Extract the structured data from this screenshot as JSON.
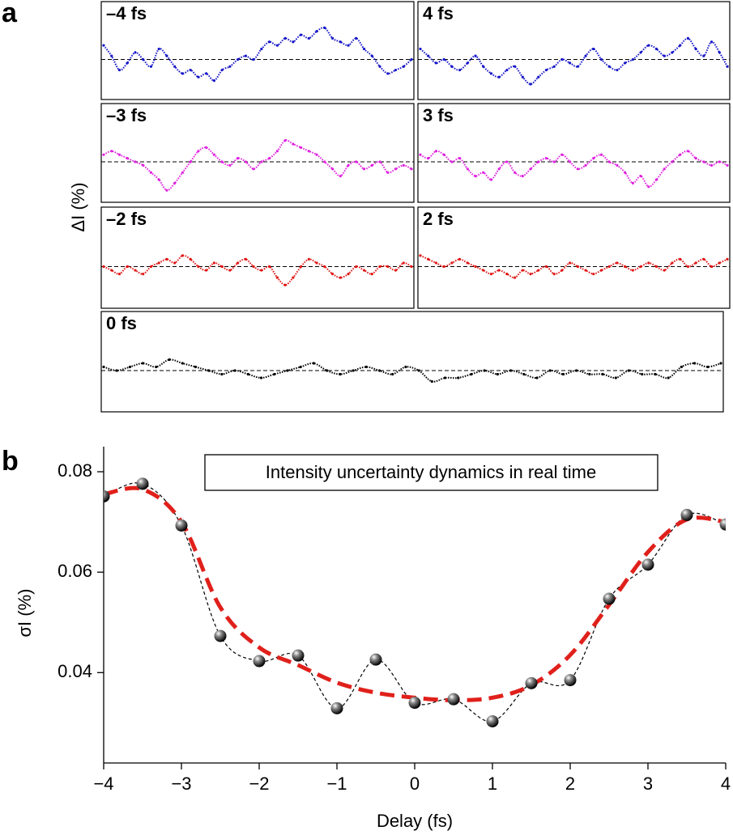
{
  "figure": {
    "panel_a_label": "a",
    "panel_a_ylabel": "ΔI (%)",
    "panel_b_label": "b"
  },
  "chart_data": [
    {
      "type": "trace",
      "title": "–4 fs",
      "color": "#1515c8",
      "ylim": [
        -1,
        1
      ],
      "zero_line": true,
      "values": [
        0.4,
        0.1,
        -0.3,
        -0.1,
        0.2,
        0.0,
        -0.2,
        0.3,
        0.1,
        -0.2,
        -0.4,
        -0.3,
        -0.5,
        -0.4,
        -0.6,
        -0.3,
        -0.2,
        0.0,
        0.1,
        0.0,
        0.3,
        0.5,
        0.4,
        0.6,
        0.5,
        0.7,
        0.6,
        0.8,
        0.9,
        0.6,
        0.5,
        0.4,
        0.6,
        0.3,
        0.1,
        -0.2,
        -0.4,
        -0.3,
        -0.2,
        0.0
      ]
    },
    {
      "type": "trace",
      "title": "4 fs",
      "color": "#1515c8",
      "ylim": [
        -1,
        1
      ],
      "zero_line": true,
      "values": [
        0.3,
        0.1,
        -0.1,
        0.0,
        -0.2,
        -0.3,
        -0.1,
        0.1,
        -0.2,
        -0.4,
        -0.5,
        -0.3,
        -0.2,
        -0.5,
        -0.7,
        -0.5,
        -0.3,
        -0.2,
        0.0,
        -0.1,
        -0.2,
        0.1,
        0.3,
        0.0,
        -0.2,
        -0.3,
        -0.1,
        0.0,
        0.2,
        0.4,
        0.3,
        0.1,
        0.2,
        0.4,
        0.6,
        0.3,
        0.1,
        0.5,
        0.2,
        -0.2
      ]
    },
    {
      "type": "trace",
      "title": "–3 fs",
      "color": "#e020e0",
      "ylim": [
        -1,
        1
      ],
      "zero_line": true,
      "values": [
        0.2,
        0.3,
        0.2,
        0.1,
        0.0,
        -0.1,
        -0.3,
        -0.5,
        -0.8,
        -0.6,
        -0.3,
        0.0,
        0.3,
        0.4,
        0.2,
        0.0,
        -0.1,
        0.1,
        0.0,
        -0.2,
        0.0,
        0.1,
        0.3,
        0.6,
        0.5,
        0.4,
        0.3,
        0.2,
        0.0,
        -0.2,
        -0.4,
        -0.1,
        0.0,
        -0.2,
        -0.1,
        0.0,
        -0.3,
        -0.2,
        -0.1,
        -0.2
      ]
    },
    {
      "type": "trace",
      "title": "3 fs",
      "color": "#e020e0",
      "ylim": [
        -1,
        1
      ],
      "zero_line": true,
      "values": [
        0.2,
        0.1,
        0.3,
        0.2,
        0.0,
        0.1,
        -0.2,
        -0.4,
        -0.3,
        -0.5,
        -0.2,
        0.0,
        -0.3,
        -0.4,
        -0.2,
        0.0,
        0.1,
        0.0,
        0.2,
        0.0,
        -0.2,
        -0.1,
        0.1,
        0.2,
        0.0,
        -0.1,
        -0.3,
        -0.6,
        -0.4,
        -0.7,
        -0.5,
        -0.2,
        0.0,
        0.2,
        0.3,
        0.1,
        0.0,
        -0.1,
        0.0,
        -0.1
      ]
    },
    {
      "type": "trace",
      "title": "–2 fs",
      "color": "#e01515",
      "ylim": [
        -1,
        1
      ],
      "zero_line": true,
      "values": [
        0.0,
        -0.1,
        -0.2,
        0.0,
        -0.1,
        -0.2,
        0.0,
        0.1,
        0.2,
        0.1,
        0.3,
        0.2,
        0.0,
        -0.1,
        0.1,
        0.0,
        -0.1,
        0.1,
        0.2,
        0.0,
        -0.1,
        0.0,
        -0.3,
        -0.5,
        -0.3,
        0.0,
        0.2,
        0.1,
        0.0,
        -0.2,
        -0.3,
        -0.2,
        0.0,
        -0.1,
        -0.2,
        0.0,
        0.0,
        -0.1,
        0.1,
        0.0
      ]
    },
    {
      "type": "trace",
      "title": "2 fs",
      "color": "#e01515",
      "ylim": [
        -1,
        1
      ],
      "zero_line": true,
      "values": [
        0.3,
        0.2,
        0.1,
        0.0,
        0.1,
        0.2,
        0.1,
        0.0,
        -0.1,
        -0.2,
        -0.1,
        -0.2,
        -0.3,
        -0.1,
        -0.2,
        -0.1,
        0.0,
        -0.2,
        -0.1,
        0.1,
        0.0,
        -0.1,
        -0.2,
        -0.1,
        0.0,
        0.1,
        0.0,
        -0.1,
        0.0,
        0.1,
        0.0,
        -0.1,
        0.1,
        0.2,
        0.0,
        0.1,
        0.2,
        0.0,
        0.1,
        0.2
      ]
    },
    {
      "type": "trace",
      "title": "0 fs",
      "color": "#000000",
      "ylim": [
        -1,
        1
      ],
      "zero_line": true,
      "values": [
        0.1,
        0.0,
        0.1,
        0.2,
        0.1,
        0.3,
        0.2,
        0.1,
        0.0,
        -0.1,
        0.0,
        -0.1,
        -0.2,
        -0.1,
        0.0,
        0.1,
        0.2,
        0.0,
        -0.1,
        0.0,
        0.1,
        0.0,
        -0.1,
        0.1,
        0.0,
        -0.3,
        -0.2,
        -0.2,
        -0.1,
        0.0,
        -0.1,
        0.0,
        -0.1,
        -0.2,
        0.0,
        -0.1,
        0.0,
        -0.1,
        -0.1,
        -0.2,
        0.0,
        -0.1,
        -0.1,
        -0.2,
        0.1,
        0.2,
        0.1,
        0.2
      ]
    },
    {
      "type": "line",
      "annotation": "Intensity uncertainty dynamics in real time",
      "xlabel": "Delay (fs)",
      "ylabel": "σI (%)",
      "x": [
        -4,
        -3.5,
        -3,
        -2.5,
        -2,
        -1.5,
        -1,
        -0.5,
        0,
        0.5,
        1,
        1.5,
        2,
        2.5,
        3,
        3.5,
        4
      ],
      "xlim": [
        -4,
        4
      ],
      "xticks": [
        {
          "value": -4,
          "label": "−4"
        },
        {
          "value": -3,
          "label": "−3"
        },
        {
          "value": -2,
          "label": "−2"
        },
        {
          "value": -1,
          "label": "−1"
        },
        0,
        1,
        2,
        3,
        4
      ],
      "ylim": [
        0.022,
        0.085
      ],
      "yticks": [
        0.04,
        0.06,
        0.08
      ],
      "series": [
        {
          "color": "#000000",
          "style": "thin-dashed",
          "markers": true,
          "values": [
            0.0751,
            0.0776,
            0.0693,
            0.0473,
            0.0423,
            0.0434,
            0.0329,
            0.0426,
            0.034,
            0.0347,
            0.0303,
            0.0379,
            0.0385,
            0.0547,
            0.0615,
            0.0714,
            0.0695
          ]
        },
        {
          "color": "#e0201b",
          "style": "thick-dashed",
          "markers": false,
          "values": [
            0.0755,
            0.0765,
            0.07,
            0.053,
            0.045,
            0.0415,
            0.038,
            0.036,
            0.035,
            0.0345,
            0.035,
            0.0375,
            0.0435,
            0.0535,
            0.064,
            0.0705,
            0.07
          ]
        }
      ]
    }
  ]
}
